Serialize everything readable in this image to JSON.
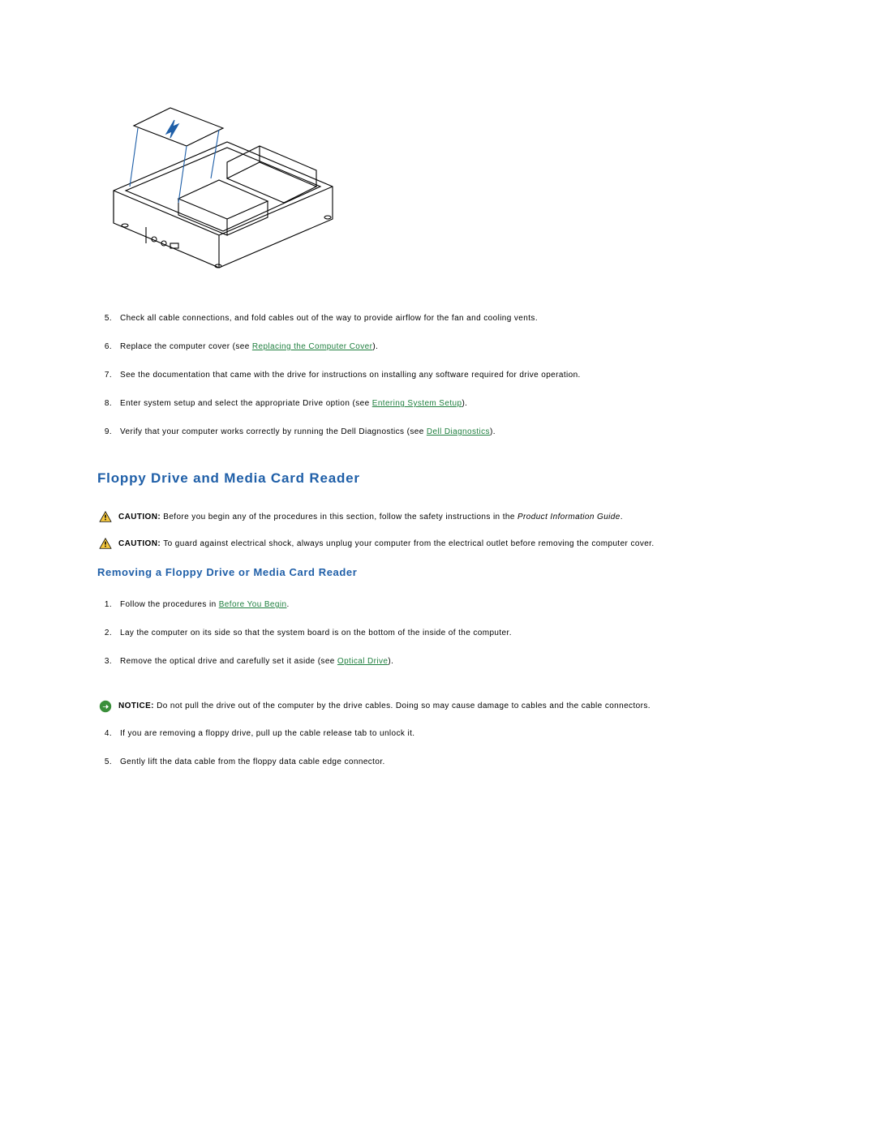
{
  "colors": {
    "heading": "#1f5fa8",
    "link": "#1f7f3f",
    "text": "#000000",
    "caution_fill": "#f7c93f",
    "caution_stroke": "#000000",
    "notice_fill": "#3a8f3a",
    "notice_arrow": "#ffffff"
  },
  "list1": {
    "start": 5,
    "items": [
      {
        "n": "5.",
        "pre": "Check all cable connections, and fold cables out of the way to provide airflow for the fan and cooling vents.",
        "link": "",
        "post": ""
      },
      {
        "n": "6.",
        "pre": "Replace the computer cover (see ",
        "link": "Replacing the Computer Cover",
        "post": ")."
      },
      {
        "n": "7.",
        "pre": "See the documentation that came with the drive for instructions on installing any software required for drive operation.",
        "link": "",
        "post": ""
      },
      {
        "n": "8.",
        "pre": "Enter system setup and select the appropriate Drive option (see ",
        "link": "Entering System Setup",
        "post": ")."
      },
      {
        "n": "9.",
        "pre": "Verify that your computer works correctly by running the Dell Diagnostics (see ",
        "link": "Dell Diagnostics",
        "post": ")."
      }
    ]
  },
  "section_title": "Floppy Drive and Media Card Reader",
  "caution1": {
    "label": "CAUTION: ",
    "text": "Before you begin any of the procedures in this section, follow the safety instructions in the ",
    "ital": "Product Information Guide",
    "post": "."
  },
  "caution2": {
    "label": "CAUTION: ",
    "text": "To guard against electrical shock, always unplug your computer from the electrical outlet before removing the computer cover."
  },
  "subsection_title": "Removing a Floppy Drive or Media Card Reader",
  "list2": {
    "items": [
      {
        "n": "1.",
        "pre": "Follow the procedures in ",
        "link": "Before You Begin",
        "post": "."
      },
      {
        "n": "2.",
        "pre": "Lay the computer on its side so that the system board is on the bottom of the inside of the computer.",
        "link": "",
        "post": ""
      },
      {
        "n": "3.",
        "pre": "Remove the optical drive and carefully set it aside (see ",
        "link": "Optical Drive",
        "post": ")."
      }
    ]
  },
  "notice1": {
    "label": "NOTICE: ",
    "text": "Do not pull the drive out of the computer by the drive cables. Doing so may cause damage to cables and the cable connectors."
  },
  "list3": {
    "items": [
      {
        "n": "4.",
        "pre": "If you are removing a floppy drive, pull up the cable release tab to unlock it.",
        "link": "",
        "post": ""
      },
      {
        "n": "5.",
        "pre": "Gently lift the data cable from the floppy data cable edge connector.",
        "link": "",
        "post": ""
      }
    ]
  }
}
